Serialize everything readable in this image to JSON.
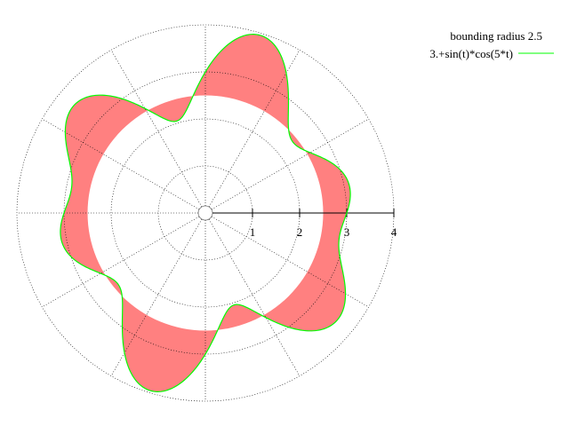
{
  "chart_data": {
    "type": "polar-line",
    "title": "",
    "xlabel": "",
    "ylabel": "",
    "grid": true,
    "legend_placement": "top-right",
    "r_axis": {
      "min": 0,
      "max": 4,
      "ticks": [
        "1",
        "2",
        "3",
        "4"
      ]
    },
    "theta_grid_step_deg": 30,
    "series": [
      {
        "name": "bounding radius 2.5",
        "kind": "filled-region",
        "r_inner": 2.5,
        "color": "#ff8080"
      },
      {
        "name": "3.+sin(t)*cos(5*t)",
        "kind": "curve",
        "formula": "3+sin(t)*cos(5*t)",
        "color": "#00ff00"
      }
    ]
  }
}
